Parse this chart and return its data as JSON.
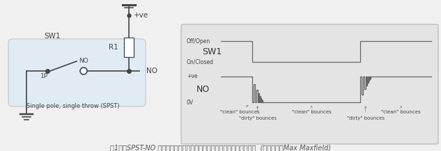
{
  "bg_color": "#f0f0f0",
  "panel_bg": "#e8e8e8",
  "line_color": "#888888",
  "dark_line": "#444444",
  "caption": "图1：在SPST-NO 拨动开关情况下，开关启动和停用时都可能发生抖动。  (图片来源：Max Maxfield)",
  "caption_color": "#555555",
  "caption_fontsize": 7.0,
  "sw_label": "SW1",
  "sw_sublabel": "Single pole, single throw (SPST)",
  "r1_label": "R1",
  "pve_label": "+ve",
  "no_label_right": "NO",
  "p1_label": "1P",
  "no_label_sw": "NO",
  "panel_title_off": "Off/Open",
  "panel_sw": "SW1",
  "panel_on": "On/Closed",
  "panel_pve": "+ve",
  "panel_no": "NO",
  "panel_0v": "0V",
  "panel_clean1": "\"clean\" bounces",
  "panel_dirty1": "\"dirty\" bounces",
  "panel_clean2": "\"clean\" bounces",
  "panel_dirty2": "\"dirty\" bounces",
  "panel_clean3": "\"clean\" bounces"
}
